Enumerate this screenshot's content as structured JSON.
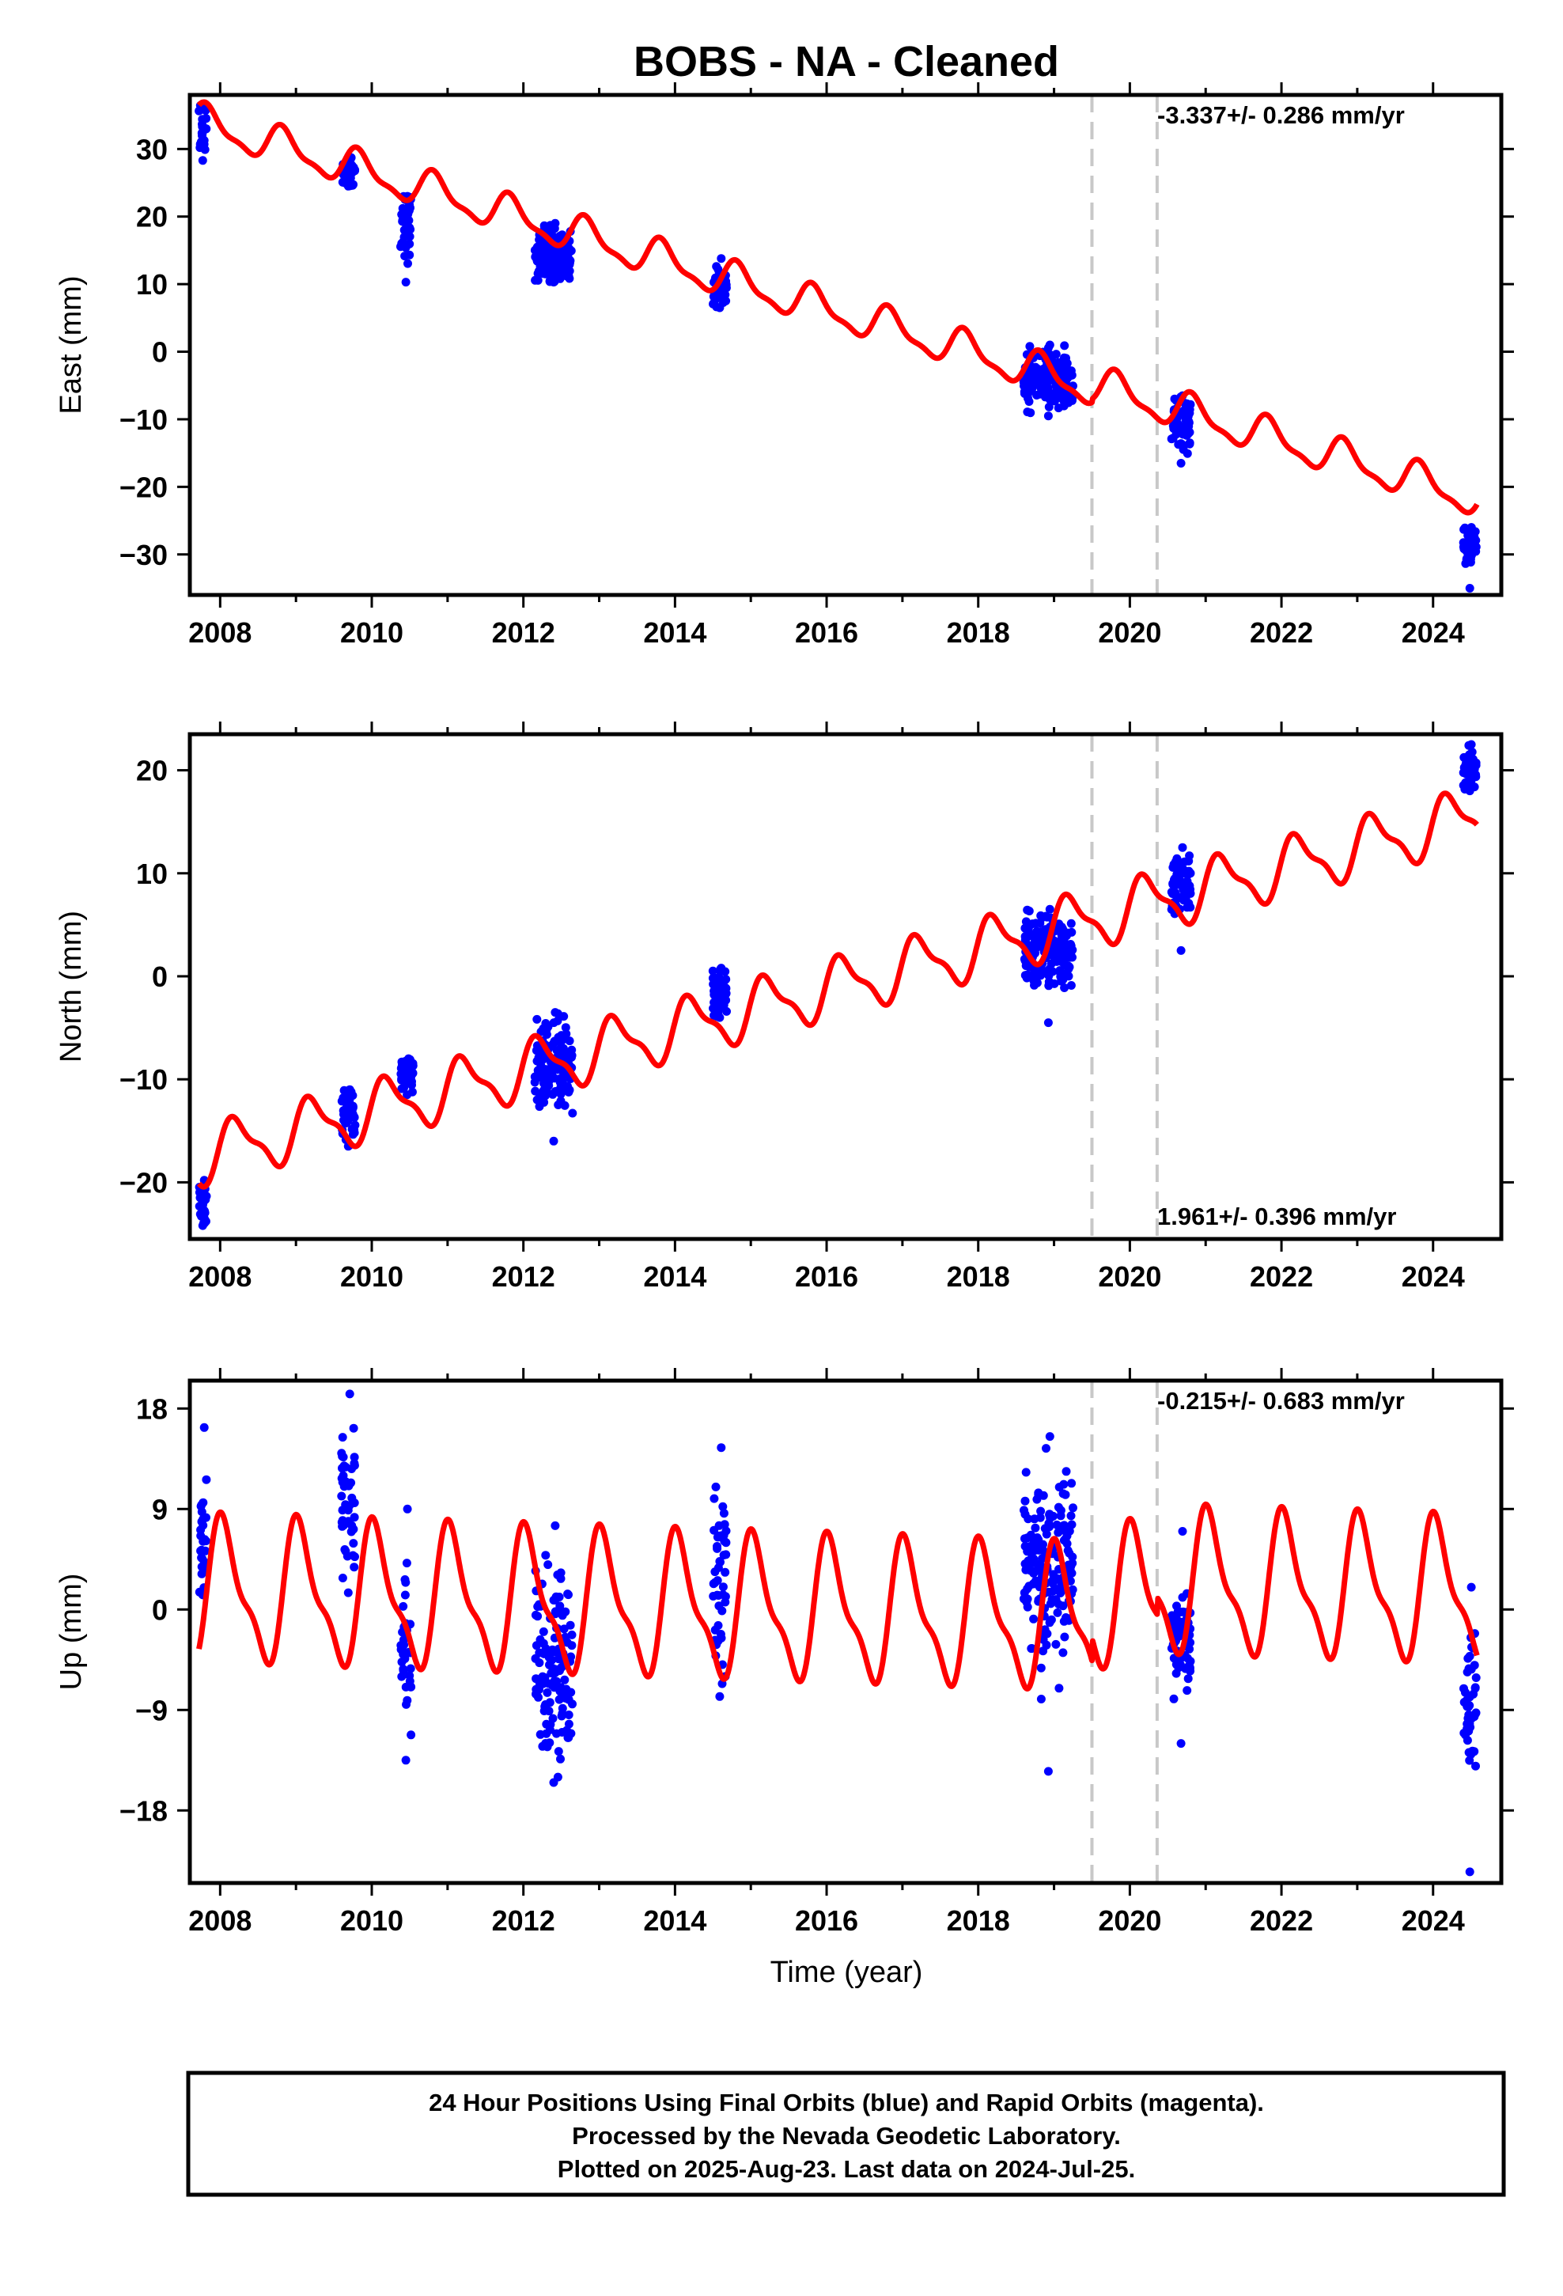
{
  "title": "BOBS  - NA - Cleaned",
  "colors": {
    "model": "#ff0000",
    "final_orbits": "#0000ff",
    "rapid_orbits": "#ff00ff",
    "event_line": "#c8c8c8",
    "axes": "#000000"
  },
  "xlabel": "Time (year)",
  "footer": {
    "line1": "24 Hour Positions Using Final Orbits (blue) and Rapid Orbits (magenta).",
    "line2": "Processed by the Nevada Geodetic Laboratory.",
    "line3": "Plotted on 2025-Aug-23. Last data on 2024-Jul-25."
  },
  "chart_data": [
    {
      "type": "scatter",
      "component": "east",
      "ylabel": "East (mm)",
      "rate_label": "-3.337+/- 0.286 mm/yr",
      "rate_position": "top-right",
      "xlim": [
        2007.6,
        2024.9
      ],
      "ylim": [
        -36,
        38
      ],
      "xticks": [
        2008,
        2010,
        2012,
        2014,
        2016,
        2018,
        2020,
        2022,
        2024
      ],
      "yticks": [
        -30,
        -20,
        -10,
        0,
        10,
        20,
        30
      ],
      "event_lines_x": [
        2019.5,
        2020.36
      ],
      "model": {
        "name": "model",
        "trend_per_year": -3.337,
        "intercept_at_2008": 33.0,
        "annual_amplitude": 2.5,
        "annual_phase": 2.6,
        "steps": [
          {
            "x": 2019.5,
            "dy": 0.5
          },
          {
            "x": 2020.36,
            "dy": 0.0
          }
        ]
      },
      "segments": [
        {
          "x": [
            2007.72,
            2007.82
          ],
          "y_center": 33.5,
          "y_spread": 2.5,
          "y_min": 28.3,
          "y_max": 36.5
        },
        {
          "x": [
            2009.6,
            2009.78
          ],
          "y_center": 26.5,
          "y_spread": 1.4,
          "y_min": 24.5,
          "y_max": 28.8
        },
        {
          "x": [
            2010.38,
            2010.52
          ],
          "y_center": 19.5,
          "y_spread": 3.0,
          "y_min": 10.3,
          "y_max": 23.0
        },
        {
          "x": [
            2012.15,
            2012.65
          ],
          "y_center": 14.0,
          "y_spread": 2.0,
          "y_min": 10.3,
          "y_max": 19.0
        },
        {
          "x": [
            2014.5,
            2014.68
          ],
          "y_center": 9.5,
          "y_spread": 1.6,
          "y_min": 6.5,
          "y_max": 13.8
        },
        {
          "x": [
            2018.6,
            2019.25
          ],
          "y_center": -4.0,
          "y_spread": 2.0,
          "y_min": -9.5,
          "y_max": 1.0
        },
        {
          "x": [
            2020.55,
            2020.8
          ],
          "y_center": -11.0,
          "y_spread": 2.0,
          "y_min": -16.5,
          "y_max": -6.5
        },
        {
          "x": [
            2024.4,
            2024.57
          ],
          "y_center": -29.0,
          "y_spread": 1.8,
          "y_min": -35.0,
          "y_max": -26.0
        }
      ]
    },
    {
      "type": "scatter",
      "component": "north",
      "ylabel": "North (mm)",
      "rate_label": "1.961+/- 0.396 mm/yr",
      "rate_position": "bottom-right",
      "xlim": [
        2007.6,
        2024.9
      ],
      "ylim": [
        -25.5,
        23.5
      ],
      "xticks": [
        2008,
        2010,
        2012,
        2014,
        2016,
        2018,
        2020,
        2022,
        2024
      ],
      "yticks": [
        -20,
        -10,
        0,
        10,
        20
      ],
      "event_lines_x": [
        2019.5,
        2020.36
      ],
      "model": {
        "name": "model",
        "trend_per_year": 1.961,
        "intercept_at_2008": -17.0,
        "annual_amplitude": 2.6,
        "annual_phase": 0.2,
        "steps": [
          {
            "x": 2019.5,
            "dy": 0.0
          },
          {
            "x": 2020.36,
            "dy": 0.0
          }
        ]
      },
      "segments": [
        {
          "x": [
            2007.72,
            2007.82
          ],
          "y_center": -22.0,
          "y_spread": 1.2,
          "y_min": -24.2,
          "y_max": -19.8
        },
        {
          "x": [
            2009.6,
            2009.78
          ],
          "y_center": -13.0,
          "y_spread": 1.5,
          "y_min": -16.5,
          "y_max": -11.0
        },
        {
          "x": [
            2010.38,
            2010.55
          ],
          "y_center": -9.5,
          "y_spread": 1.0,
          "y_min": -11.5,
          "y_max": -8.0
        },
        {
          "x": [
            2012.15,
            2012.65
          ],
          "y_center": -8.5,
          "y_spread": 2.0,
          "y_min": -16.0,
          "y_max": -3.5
        },
        {
          "x": [
            2014.5,
            2014.68
          ],
          "y_center": -1.5,
          "y_spread": 1.2,
          "y_min": -4.0,
          "y_max": 0.8
        },
        {
          "x": [
            2018.6,
            2019.25
          ],
          "y_center": 2.5,
          "y_spread": 1.8,
          "y_min": -4.5,
          "y_max": 6.5
        },
        {
          "x": [
            2020.55,
            2020.8
          ],
          "y_center": 9.0,
          "y_spread": 1.6,
          "y_min": 2.5,
          "y_max": 12.5
        },
        {
          "x": [
            2024.4,
            2024.57
          ],
          "y_center": 20.5,
          "y_spread": 1.2,
          "y_min": 18.0,
          "y_max": 22.5
        }
      ]
    },
    {
      "type": "scatter",
      "component": "up",
      "ylabel": "Up (mm)",
      "rate_label": "-0.215+/- 0.683 mm/yr",
      "rate_position": "top-right",
      "xlim": [
        2007.6,
        2024.9
      ],
      "ylim": [
        -24.5,
        20.5
      ],
      "xticks": [
        2008,
        2010,
        2012,
        2014,
        2016,
        2018,
        2020,
        2022,
        2024
      ],
      "yticks": [
        -18,
        -9,
        0,
        9,
        18
      ],
      "event_lines_x": [
        2019.5,
        2020.36
      ],
      "model": {
        "name": "model",
        "trend_per_year": -0.215,
        "intercept_at_2008": 1.5,
        "annual_amplitude": 5.8,
        "annual_phase": 1.2,
        "steps": [
          {
            "x": 2019.5,
            "dy": 2.0
          },
          {
            "x": 2020.36,
            "dy": 1.5
          }
        ]
      },
      "segments": [
        {
          "x": [
            2007.72,
            2007.82
          ],
          "y_center": 5.0,
          "y_spread": 2.5,
          "y_min": 1.3,
          "y_max": 16.3
        },
        {
          "x": [
            2009.6,
            2009.78
          ],
          "y_center": 10.0,
          "y_spread": 3.0,
          "y_min": 1.5,
          "y_max": 19.3
        },
        {
          "x": [
            2010.38,
            2010.52
          ],
          "y_center": -4.0,
          "y_spread": 4.0,
          "y_min": -13.5,
          "y_max": 9.0
        },
        {
          "x": [
            2012.15,
            2012.65
          ],
          "y_center": -4.0,
          "y_spread": 4.0,
          "y_min": -15.5,
          "y_max": 7.5
        },
        {
          "x": [
            2014.5,
            2014.68
          ],
          "y_center": 3.0,
          "y_spread": 4.0,
          "y_min": -7.8,
          "y_max": 14.5
        },
        {
          "x": [
            2018.6,
            2019.25
          ],
          "y_center": 3.5,
          "y_spread": 4.0,
          "y_min": -14.5,
          "y_max": 15.5
        },
        {
          "x": [
            2020.55,
            2020.8
          ],
          "y_center": -3.0,
          "y_spread": 3.0,
          "y_min": -12.0,
          "y_max": 7.0
        },
        {
          "x": [
            2024.4,
            2024.57
          ],
          "y_center": -7.5,
          "y_spread": 3.0,
          "y_min": -23.5,
          "y_max": 2.0
        }
      ]
    }
  ]
}
